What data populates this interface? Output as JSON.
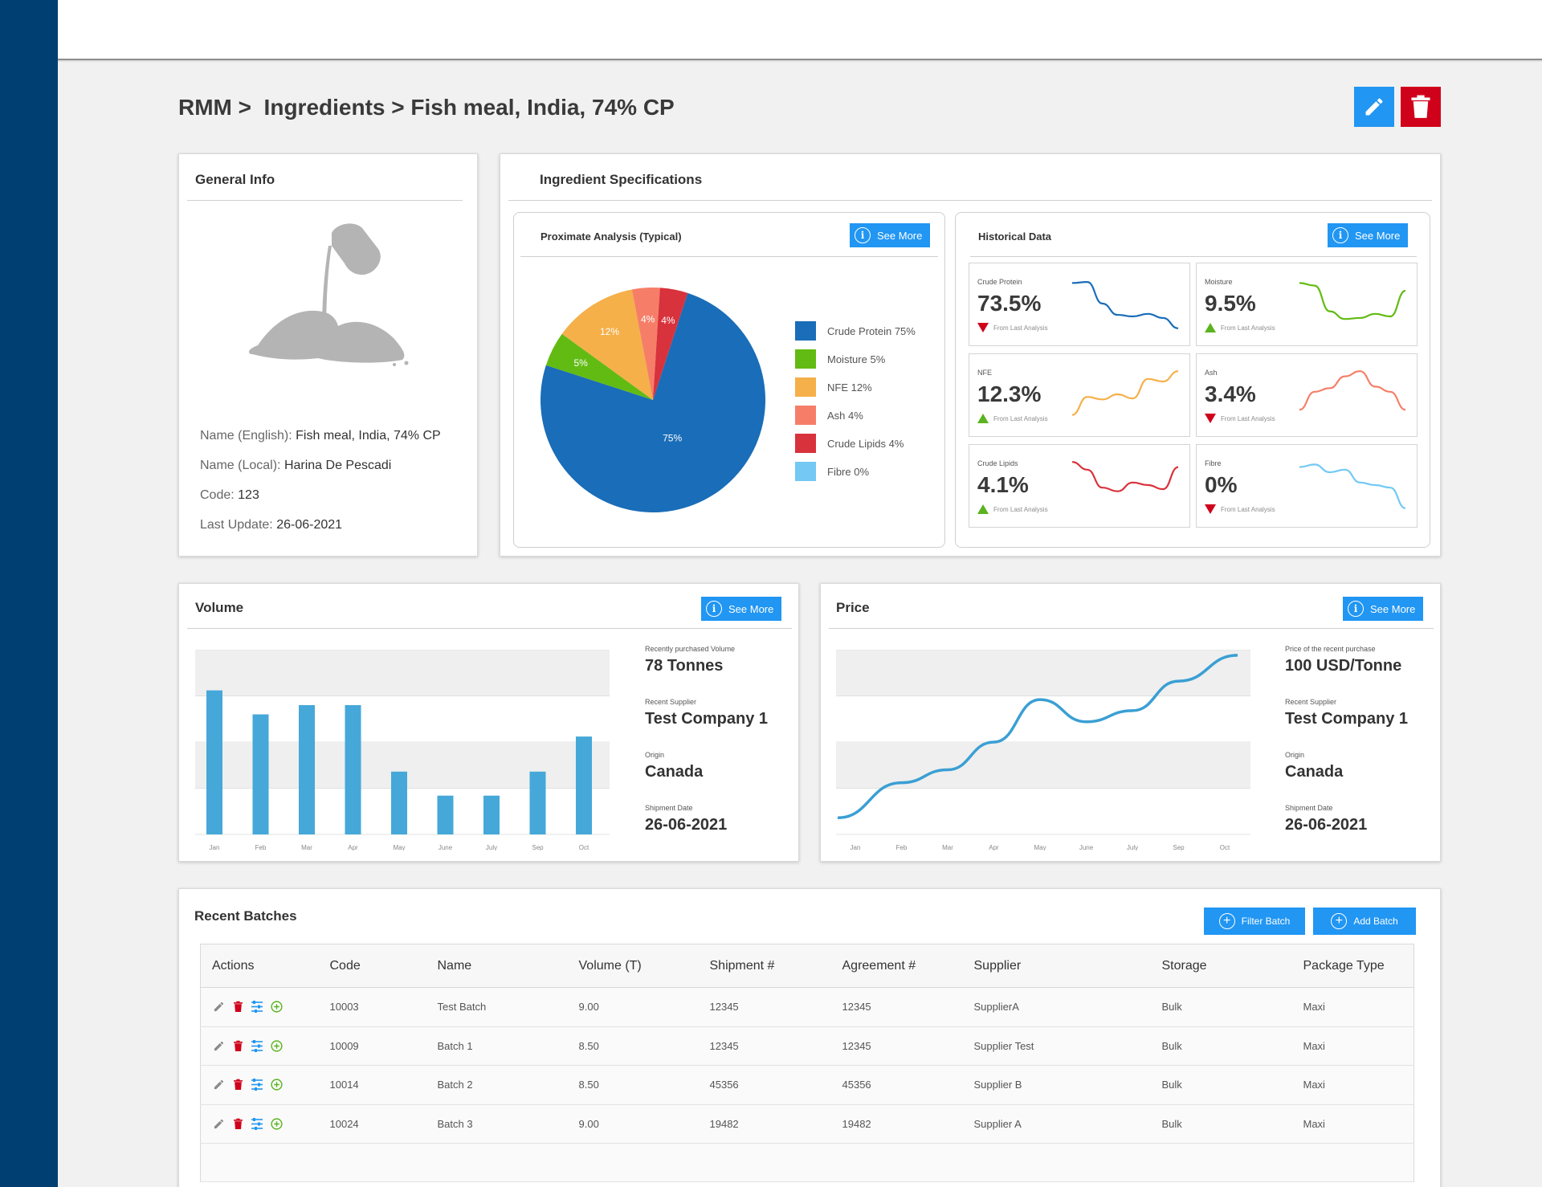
{
  "breadcrumb": {
    "text": "RMM >  Ingredients > Fish meal, India, 74% CP"
  },
  "general_info": {
    "title": "General Info",
    "image_icon": "pouring-powder-icon",
    "name_english_label": "Name (English):",
    "name_english": "Fish meal, India, 74% CP",
    "name_local_label": "Name (Local):",
    "name_local": "Harina De Pescadi",
    "code_label": "Code:",
    "code": "123",
    "last_update_label": "Last Update:",
    "last_update": "26-06-2021"
  },
  "specifications": {
    "title": "Ingredient Specifications",
    "proximate": {
      "title": "Proximate Analysis (Typical)",
      "see_more": "See More",
      "chart_data": {
        "type": "pie",
        "categories": [
          "Crude Protein",
          "Moisture",
          "NFE",
          "Ash",
          "Crude Lipids",
          "Fibre"
        ],
        "values": [
          75,
          5,
          12,
          4,
          4,
          0
        ],
        "slice_labels": [
          "75%",
          "5%",
          "12%",
          "4%",
          "4%",
          ""
        ],
        "legend": [
          "Crude Protein 75%",
          "Moisture 5%",
          "NFE 12%",
          "Ash 4%",
          "Crude Lipids 4%",
          "Fibre 0%"
        ],
        "colors": [
          "#1a6db8",
          "#62bb12",
          "#f5b04a",
          "#f67e68",
          "#d8323c",
          "#73c9f3"
        ],
        "legend_position": "right"
      }
    },
    "historical": {
      "title": "Historical Data",
      "see_more": "See More",
      "trend_text": "From Last Analysis",
      "items": [
        {
          "label": "Crude Protein",
          "value": "73.5%",
          "trend": "down",
          "color": "#1a6db8",
          "spark": [
            0.9,
            0.92,
            0.5,
            0.28,
            0.25,
            0.3,
            0.22,
            0.02
          ]
        },
        {
          "label": "Moisture",
          "value": "9.5%",
          "trend": "up",
          "color": "#62bb12",
          "spark": [
            0.9,
            0.85,
            0.35,
            0.2,
            0.22,
            0.3,
            0.25,
            0.75
          ]
        },
        {
          "label": "NFE",
          "value": "12.3%",
          "trend": "up",
          "color": "#f5b04a",
          "spark": [
            0.1,
            0.45,
            0.4,
            0.5,
            0.42,
            0.8,
            0.75,
            0.95
          ]
        },
        {
          "label": "Ash",
          "value": "3.4%",
          "trend": "down",
          "color": "#f67e68",
          "spark": [
            0.2,
            0.55,
            0.62,
            0.85,
            0.95,
            0.65,
            0.55,
            0.2
          ]
        },
        {
          "label": "Crude Lipids",
          "value": "4.1%",
          "trend": "up",
          "color": "#d8323c",
          "spark": [
            0.95,
            0.8,
            0.45,
            0.38,
            0.55,
            0.5,
            0.42,
            0.85
          ]
        },
        {
          "label": "Fibre",
          "value": "0%",
          "trend": "down",
          "color": "#73c9f3",
          "spark": [
            0.85,
            0.9,
            0.75,
            0.8,
            0.55,
            0.5,
            0.45,
            0.05
          ]
        }
      ]
    }
  },
  "volume": {
    "title": "Volume",
    "see_more": "See More",
    "chart_data": {
      "type": "bar",
      "categories": [
        "Jan",
        "Feb",
        "Mar",
        "Apr",
        "May",
        "June",
        "July",
        "Sep",
        "Oct"
      ],
      "values": [
        78,
        65,
        70,
        70,
        34,
        21,
        21,
        34,
        53
      ],
      "ylim": [
        0,
        100
      ],
      "grid": "alternating bands",
      "color": "#45a8d8"
    },
    "stats": [
      {
        "label": "Recently purchased Volume",
        "value": "78 Tonnes"
      },
      {
        "label": "Recent Supplier",
        "value": "Test Company 1"
      },
      {
        "label": "Origin",
        "value": "Canada"
      },
      {
        "label": "Shipment Date",
        "value": "26-06-2021"
      }
    ]
  },
  "price": {
    "title": "Price",
    "see_more": "See More",
    "chart_data": {
      "type": "line",
      "categories": [
        "Jan",
        "Feb",
        "Mar",
        "Apr",
        "May",
        "June",
        "July",
        "Sep",
        "Oct"
      ],
      "values": [
        9,
        28,
        35,
        50,
        73,
        61,
        67,
        83,
        97
      ],
      "ylim": [
        0,
        100
      ],
      "grid": "alternating bands",
      "color": "#3a9fd4"
    },
    "stats": [
      {
        "label": "Price of the recent purchase",
        "value": "100 USD/Tonne"
      },
      {
        "label": "Recent Supplier",
        "value": "Test Company 1"
      },
      {
        "label": "Origin",
        "value": "Canada"
      },
      {
        "label": "Shipment Date",
        "value": "26-06-2021"
      }
    ]
  },
  "batches": {
    "title": "Recent Batches",
    "filter_label": "Filter Batch",
    "add_label": "Add Batch",
    "columns": [
      "Actions",
      "Code",
      "Name",
      "Volume (T)",
      "Shipment #",
      "Agreement #",
      "Supplier",
      "Storage",
      "Package Type"
    ],
    "rows": [
      [
        "10003",
        "Test Batch",
        "9.00",
        "12345",
        "12345",
        "SupplierA",
        "Bulk",
        "Maxi"
      ],
      [
        "10009",
        "Batch 1",
        "8.50",
        "12345",
        "12345",
        "Supplier Test",
        "Bulk",
        "Maxi"
      ],
      [
        "10014",
        "Batch 2",
        "8.50",
        "45356",
        "45356",
        "Supplier B",
        "Bulk",
        "Maxi"
      ],
      [
        "10024",
        "Batch 3",
        "9.00",
        "19482",
        "19482",
        "Supplier A",
        "Bulk",
        "Maxi"
      ]
    ]
  }
}
